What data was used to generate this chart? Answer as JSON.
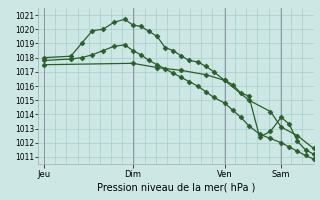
{
  "bg_color": "#cde8e4",
  "grid_color": "#aacccc",
  "line_color": "#2a5e2a",
  "marker_color": "#2a5e2a",
  "title": "Pression niveau de la mer( hPa )",
  "ylim": [
    1010.5,
    1021.5
  ],
  "yticks": [
    1011,
    1012,
    1013,
    1014,
    1015,
    1016,
    1017,
    1018,
    1019,
    1020,
    1021
  ],
  "day_labels": [
    "Jeu",
    "Dim",
    "Ven",
    "Sam"
  ],
  "day_positions": [
    0.0,
    0.33,
    0.67,
    0.88
  ],
  "vline_positions": [
    0.0,
    0.33,
    0.67,
    0.88
  ],
  "xlim": [
    -0.02,
    1.0
  ],
  "s1x": [
    0.0,
    0.1,
    0.14,
    0.18,
    0.22,
    0.26,
    0.3,
    0.33,
    0.36,
    0.39,
    0.42,
    0.45,
    0.48,
    0.51,
    0.54,
    0.57,
    0.6,
    0.63,
    0.67,
    0.7,
    0.73,
    0.76,
    0.8,
    0.84,
    0.88,
    0.91,
    0.94,
    0.97,
    1.0
  ],
  "s1y": [
    1018.0,
    1018.1,
    1019.0,
    1019.9,
    1020.0,
    1020.5,
    1020.7,
    1020.3,
    1020.2,
    1019.85,
    1019.5,
    1018.7,
    1018.5,
    1018.1,
    1017.8,
    1017.7,
    1017.4,
    1017.0,
    1016.4,
    1016.1,
    1015.5,
    1015.3,
    1012.4,
    1012.8,
    1013.8,
    1013.3,
    1012.1,
    1011.5,
    1011.2
  ],
  "s2x": [
    0.0,
    0.1,
    0.14,
    0.18,
    0.22,
    0.26,
    0.3,
    0.33,
    0.36,
    0.39,
    0.42,
    0.45,
    0.48,
    0.51,
    0.54,
    0.57,
    0.6,
    0.63,
    0.67,
    0.7,
    0.73,
    0.76,
    0.8,
    0.84,
    0.88,
    0.91,
    0.94,
    0.97,
    1.0
  ],
  "s2y": [
    1017.8,
    1017.9,
    1018.0,
    1018.2,
    1018.5,
    1018.8,
    1018.9,
    1018.5,
    1018.2,
    1017.8,
    1017.5,
    1017.2,
    1016.9,
    1016.6,
    1016.3,
    1016.0,
    1015.6,
    1015.2,
    1014.8,
    1014.3,
    1013.8,
    1013.2,
    1012.6,
    1012.3,
    1012.0,
    1011.7,
    1011.4,
    1011.1,
    1010.85
  ],
  "s3x": [
    0.0,
    0.33,
    0.42,
    0.51,
    0.6,
    0.67,
    0.76,
    0.84,
    0.88,
    0.94,
    1.0
  ],
  "s3y": [
    1017.5,
    1017.6,
    1017.3,
    1017.1,
    1016.8,
    1016.4,
    1015.0,
    1014.2,
    1013.1,
    1012.5,
    1011.6
  ]
}
